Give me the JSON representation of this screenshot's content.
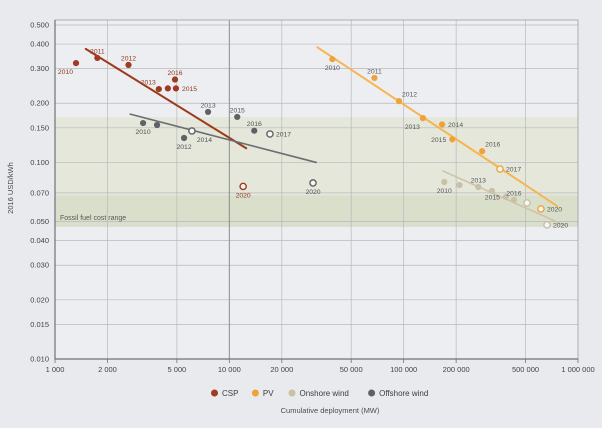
{
  "chart_data": {
    "type": "scatter",
    "title": "",
    "xlabel": "Cumulative deployment (MW)",
    "ylabel": "2016 USD/kWh",
    "x_scale": "log",
    "y_scale": "log",
    "xlim": [
      1000,
      1000000
    ],
    "ylim": [
      0.01,
      0.5
    ],
    "grid": true,
    "legend_position": "bottom",
    "x_ticks": [
      {
        "v": 1000,
        "label": "1 000"
      },
      {
        "v": 2000,
        "label": "2 000"
      },
      {
        "v": 5000,
        "label": "5 000"
      },
      {
        "v": 10000,
        "label": "10 000"
      },
      {
        "v": 20000,
        "label": "20 000"
      },
      {
        "v": 50000,
        "label": "50 000"
      },
      {
        "v": 100000,
        "label": "100 000"
      },
      {
        "v": 200000,
        "label": "200 000"
      },
      {
        "v": 500000,
        "label": "500 000"
      },
      {
        "v": 1000000,
        "label": "1 000 000"
      }
    ],
    "y_ticks": [
      {
        "v": 0.5,
        "label": "0.500"
      },
      {
        "v": 0.4,
        "label": "0.400"
      },
      {
        "v": 0.3,
        "label": "0.300"
      },
      {
        "v": 0.2,
        "label": "0.200"
      },
      {
        "v": 0.15,
        "label": "0.150"
      },
      {
        "v": 0.1,
        "label": "0.100"
      },
      {
        "v": 0.07,
        "label": "0.070"
      },
      {
        "v": 0.05,
        "label": "0.050"
      },
      {
        "v": 0.04,
        "label": "0.040"
      },
      {
        "v": 0.03,
        "label": "0.030"
      },
      {
        "v": 0.02,
        "label": "0.020"
      },
      {
        "v": 0.015,
        "label": "0.015"
      },
      {
        "v": 0.01,
        "label": "0.010"
      }
    ],
    "fossil_band": {
      "label": "Fossil fuel cost range",
      "upper": 0.17,
      "mid": 0.068,
      "lower": 0.047,
      "color_light": "#e4e7d9",
      "color_dark": "#d9dfca"
    },
    "legend": [
      "CSP",
      "PV",
      "Onshore wind",
      "Offshore wind"
    ],
    "series": [
      {
        "name": "CSP",
        "color": "#9e3b22",
        "line_color": "#9c3a1c",
        "label_color": "#8d3a21",
        "line_width": 2,
        "trend": {
          "x1": 1500,
          "y1": 0.378,
          "x2": 12500,
          "y2": 0.118
        },
        "points": [
          {
            "year": "2010",
            "x": 1320,
            "y": 0.32,
            "pos": "below-left"
          },
          {
            "year": "2011",
            "x": 1750,
            "y": 0.34,
            "pos": "above"
          },
          {
            "year": "2012",
            "x": 2640,
            "y": 0.313,
            "pos": "above"
          },
          {
            "year": "2013",
            "x": 3940,
            "y": 0.236,
            "pos": "above-left"
          },
          {
            "year": "",
            "x": 4440,
            "y": 0.238
          },
          {
            "year": "2015",
            "x": 4940,
            "y": 0.238,
            "pos": "right"
          },
          {
            "year": "2016",
            "x": 4880,
            "y": 0.264,
            "pos": "above"
          },
          {
            "year": "2020",
            "x": 12000,
            "y": 0.0755,
            "pos": "below",
            "open": true
          }
        ]
      },
      {
        "name": "PV",
        "color": "#f0a23a",
        "line_color": "#f6b551",
        "label_color": "#56585b",
        "line_width": 2,
        "trend": {
          "x1": 32000,
          "y1": 0.385,
          "x2": 760000,
          "y2": 0.06
        },
        "points": [
          {
            "year": "2010",
            "x": 39000,
            "y": 0.335,
            "pos": "below"
          },
          {
            "year": "2011",
            "x": 68000,
            "y": 0.269,
            "pos": "above"
          },
          {
            "year": "2012",
            "x": 94000,
            "y": 0.205,
            "pos": "above-right"
          },
          {
            "year": "2013",
            "x": 129000,
            "y": 0.168,
            "pos": "below-left"
          },
          {
            "year": "2014",
            "x": 166000,
            "y": 0.156,
            "pos": "right"
          },
          {
            "year": "2015",
            "x": 190000,
            "y": 0.131,
            "pos": "left"
          },
          {
            "year": "2016",
            "x": 282000,
            "y": 0.114,
            "pos": "above-right"
          },
          {
            "year": "2017",
            "x": 357000,
            "y": 0.0925,
            "pos": "right",
            "open": true
          },
          {
            "year": "2020",
            "x": 613000,
            "y": 0.058,
            "pos": "right",
            "open": true
          }
        ]
      },
      {
        "name": "Onshore wind",
        "color": "#c9c0a6",
        "line_color": "#ccc3a9",
        "label_color": "#56585b",
        "line_width": 1.6,
        "trend": {
          "x1": 168000,
          "y1": 0.0905,
          "x2": 840000,
          "y2": 0.0478
        },
        "points": [
          {
            "year": "2010",
            "x": 171000,
            "y": 0.0795,
            "pos": "below"
          },
          {
            "year": "",
            "x": 209000,
            "y": 0.0767
          },
          {
            "year": "2013",
            "x": 268000,
            "y": 0.075,
            "pos": "above"
          },
          {
            "year": "",
            "x": 321000,
            "y": 0.0716
          },
          {
            "year": "2015",
            "x": 386000,
            "y": 0.0668,
            "pos": "left"
          },
          {
            "year": "2016",
            "x": 429000,
            "y": 0.0644,
            "pos": "above"
          },
          {
            "year": "",
            "x": 510000,
            "y": 0.0622,
            "open": true
          },
          {
            "year": "2020",
            "x": 664000,
            "y": 0.0481,
            "pos": "right",
            "open": true
          }
        ]
      },
      {
        "name": "Offshore wind",
        "color": "#5f6265",
        "line_color": "#6a6d70",
        "label_color": "#515457",
        "line_width": 1.6,
        "trend": {
          "x1": 2700,
          "y1": 0.176,
          "x2": 31500,
          "y2": 0.1
        },
        "points": [
          {
            "year": "2010",
            "x": 3200,
            "y": 0.1586,
            "pos": "below"
          },
          {
            "year": "",
            "x": 3850,
            "y": 0.155
          },
          {
            "year": "2012",
            "x": 5500,
            "y": 0.1331,
            "pos": "below"
          },
          {
            "year": "2014",
            "x": 6100,
            "y": 0.1445,
            "pos": "below-right",
            "open": true
          },
          {
            "year": "2013",
            "x": 7550,
            "y": 0.1806,
            "pos": "above"
          },
          {
            "year": "2015",
            "x": 11100,
            "y": 0.1703,
            "pos": "above"
          },
          {
            "year": "2016",
            "x": 13900,
            "y": 0.145,
            "pos": "above"
          },
          {
            "year": "2017",
            "x": 17100,
            "y": 0.1395,
            "pos": "right",
            "open": true
          },
          {
            "year": "2020",
            "x": 30200,
            "y": 0.0786,
            "pos": "below",
            "open": true
          }
        ]
      }
    ]
  }
}
